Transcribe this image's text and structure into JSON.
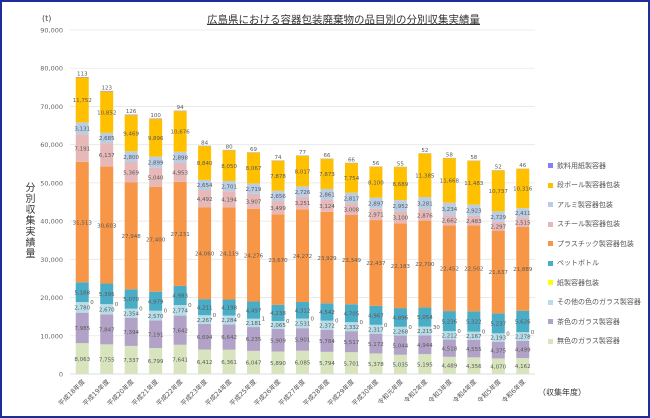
{
  "chart_data": {
    "type": "bar",
    "stacked": true,
    "title": "広島県における容器包装廃棄物の品目別の分別収集実績量",
    "unit_label": "(t)",
    "ylabel": "分別収集実績量",
    "xlabel": "（収集年度）",
    "ylim": [
      0,
      90000
    ],
    "yticks": [
      0,
      10000,
      20000,
      30000,
      40000,
      50000,
      60000,
      70000,
      80000,
      90000
    ],
    "ytick_labels": [
      "0",
      "10,000",
      "20,000",
      "30,000",
      "40,000",
      "50,000",
      "60,000",
      "70,000",
      "80,000",
      "90,000"
    ],
    "grid": true,
    "legend_position": "right",
    "categories": [
      "平成18年度",
      "平成19年度",
      "平成20年度",
      "平成21年度",
      "平成22年度",
      "平成23年度",
      "平成24年度",
      "平成25年度",
      "平成26年度",
      "平成27年度",
      "平成28年度",
      "平成29年度",
      "平成30年度",
      "令和元年度",
      "令和2年度",
      "令和3年度",
      "令和4年度",
      "令和5年度",
      "令和6年度"
    ],
    "series": [
      {
        "name": "無色のガラス製容器",
        "color": "#d7e4bd",
        "values": [
          8063,
          7755,
          7337,
          6799,
          7641,
          6412,
          6361,
          6047,
          5890,
          6085,
          5794,
          5701,
          5378,
          5035,
          5195,
          4489,
          4356,
          4070,
          4162
        ]
      },
      {
        "name": "茶色のガラス製容器",
        "color": "#b3a2c7",
        "values": [
          7985,
          7847,
          7394,
          7191,
          7642,
          6694,
          6642,
          6235,
          5909,
          5901,
          5784,
          5517,
          5172,
          5044,
          4944,
          4518,
          4555,
          4375,
          4499
        ]
      },
      {
        "name": "その他の色のガラス製容器",
        "color": "#b7dee8",
        "values": [
          2780,
          2670,
          2354,
          2570,
          2774,
          2267,
          2284,
          2181,
          2065,
          2531,
          2372,
          2332,
          2317,
          2268,
          2215,
          2212,
          2167,
          2193,
          2278
        ]
      },
      {
        "name": "紙製容器包装",
        "color": "#ffff00",
        "values": [
          0,
          0,
          0,
          0,
          0,
          0,
          0,
          1,
          0,
          0,
          0,
          0,
          0,
          0,
          30,
          0,
          0,
          0,
          0
        ]
      },
      {
        "name": "ペットボトル",
        "color": "#4bacc6",
        "values": [
          5168,
          5395,
          5070,
          4979,
          4983,
          4211,
          4198,
          4497,
          4238,
          4312,
          4542,
          4705,
          4967,
          4896,
          5054,
          5236,
          5322,
          5237,
          5626
        ]
      },
      {
        "name": "プラスチック製容器包装",
        "color": "#f79646",
        "values": [
          31513,
          30603,
          27948,
          27400,
          27231,
          24060,
          24119,
          24276,
          23670,
          24272,
          23929,
          23349,
          22437,
          22183,
          22700,
          22452,
          22502,
          21637,
          21889
        ]
      },
      {
        "name": "スチール製容器包装",
        "color": "#e6b9b8",
        "values": [
          7191,
          6137,
          5369,
          5040,
          4953,
          4492,
          4194,
          3907,
          3499,
          3251,
          3124,
          3008,
          2971,
          3100,
          2876,
          2662,
          2483,
          2297,
          2515
        ]
      },
      {
        "name": "アルミ製容器包装",
        "color": "#b9cde5",
        "values": [
          3131,
          2685,
          2800,
          2899,
          2898,
          2654,
          2701,
          2719,
          2656,
          2726,
          2861,
          2817,
          2897,
          2952,
          3281,
          3234,
          2923,
          2729,
          2411
        ]
      },
      {
        "name": "段ボール製容器包装",
        "color": "#ffc000",
        "values": [
          11752,
          10852,
          9469,
          9896,
          10676,
          8840,
          8050,
          8067,
          7878,
          8017,
          7873,
          7754,
          8100,
          8689,
          11385,
          11668,
          11483,
          10737,
          10316
        ]
      },
      {
        "name": "飲料用紙製容器",
        "color": "#7f7fff",
        "values": [
          113,
          123,
          126,
          100,
          94,
          84,
          80,
          69,
          74,
          77,
          66,
          66,
          56,
          55,
          52,
          58,
          58,
          52,
          46
        ]
      }
    ]
  }
}
